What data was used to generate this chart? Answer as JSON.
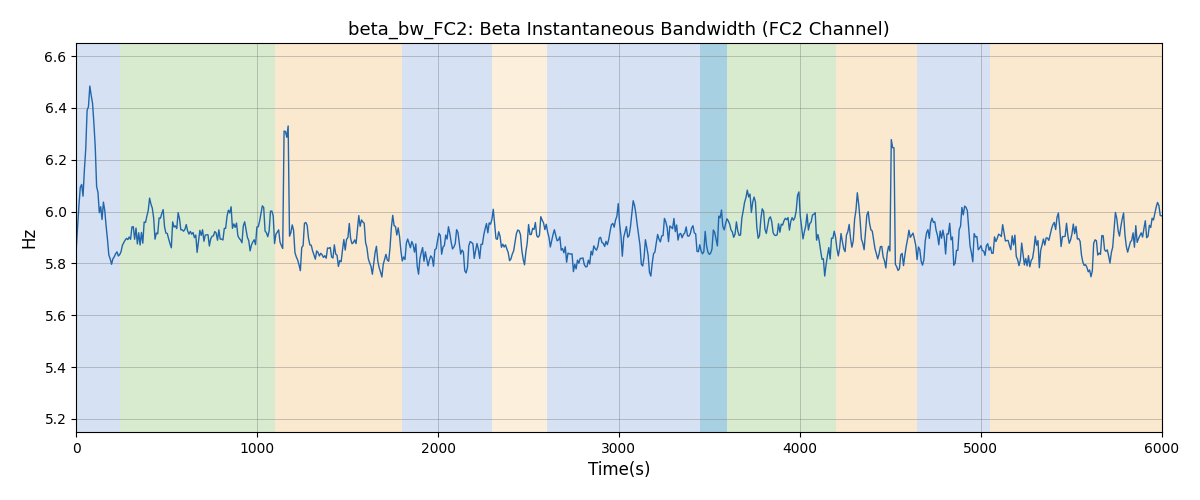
{
  "title": "beta_bw_FC2: Beta Instantaneous Bandwidth (FC2 Channel)",
  "xlabel": "Time(s)",
  "ylabel": "Hz",
  "xlim": [
    0,
    6000
  ],
  "ylim": [
    5.15,
    6.65
  ],
  "yticks": [
    5.2,
    5.4,
    5.6,
    5.8,
    6.0,
    6.2,
    6.4,
    6.6
  ],
  "xticks": [
    0,
    1000,
    2000,
    3000,
    4000,
    5000,
    6000
  ],
  "line_color": "#2166ac",
  "line_width": 1.0,
  "bands": [
    {
      "xmin": 0,
      "xmax": 240,
      "color": "#aec6e8",
      "alpha": 0.5
    },
    {
      "xmin": 240,
      "xmax": 1100,
      "color": "#b5d9a0",
      "alpha": 0.5
    },
    {
      "xmin": 1100,
      "xmax": 1800,
      "color": "#f9d4a0",
      "alpha": 0.5
    },
    {
      "xmin": 1800,
      "xmax": 2300,
      "color": "#aec6e8",
      "alpha": 0.5
    },
    {
      "xmin": 2300,
      "xmax": 2600,
      "color": "#f9d4a0",
      "alpha": 0.35
    },
    {
      "xmin": 2600,
      "xmax": 3450,
      "color": "#aec6e8",
      "alpha": 0.5
    },
    {
      "xmin": 3450,
      "xmax": 3600,
      "color": "#7ab8d4",
      "alpha": 0.65
    },
    {
      "xmin": 3600,
      "xmax": 4200,
      "color": "#b5d9a0",
      "alpha": 0.5
    },
    {
      "xmin": 4200,
      "xmax": 4650,
      "color": "#f9d4a0",
      "alpha": 0.5
    },
    {
      "xmin": 4650,
      "xmax": 5050,
      "color": "#aec6e8",
      "alpha": 0.5
    },
    {
      "xmin": 5050,
      "xmax": 6000,
      "color": "#f9d4a0",
      "alpha": 0.5
    }
  ],
  "seed": 12,
  "n_points": 800,
  "base_freq": 5.9,
  "noise_scale": 0.12,
  "title_fontsize": 13,
  "figsize": [
    12.0,
    5.0
  ],
  "dpi": 100
}
